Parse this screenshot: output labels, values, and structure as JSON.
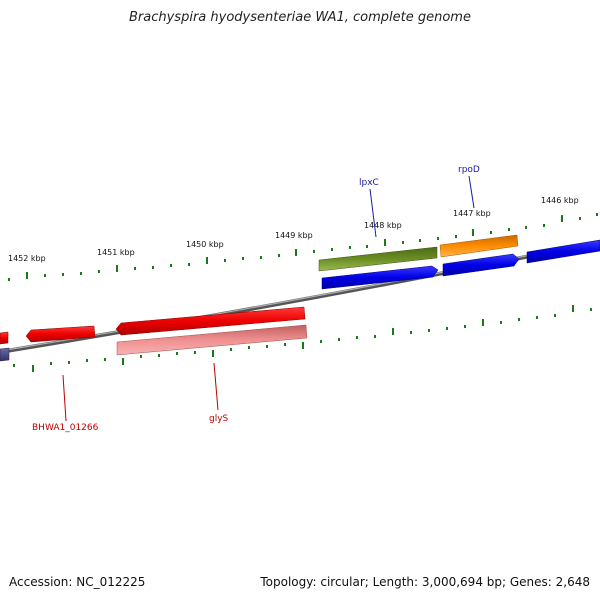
{
  "header": {
    "title": "Brachyspira hyodysenteriae WA1, complete genome"
  },
  "footer": {
    "accession": "Accession: NC_012225",
    "summary": "Topology: circular; Length: 3,000,694 bp; Genes: 2,648"
  },
  "ticks": [
    "1452 kbp",
    "1451 kbp",
    "1450 kbp",
    "1449 kbp",
    "1448 kbp",
    "1447 kbp",
    "1446 kbp"
  ],
  "gene_labels": {
    "lpxC": "lpxC",
    "rpoD": "rpoD",
    "bhwa": "BHWA1_01266",
    "glyS": "glyS"
  },
  "colors": {
    "forward_gene": "#0000e6",
    "reverse_gene": "#ee0000",
    "reverse_gene_light": "#f08a8a",
    "lpxC_gene": "#6b8e23",
    "rpoD_gene": "#ff8c00",
    "partial_gene": "#4a4a8a",
    "backbone": "#777777",
    "tick_marks": "#1a7a1a",
    "label_blue": "#1a1aa0",
    "label_red": "#c00000"
  }
}
